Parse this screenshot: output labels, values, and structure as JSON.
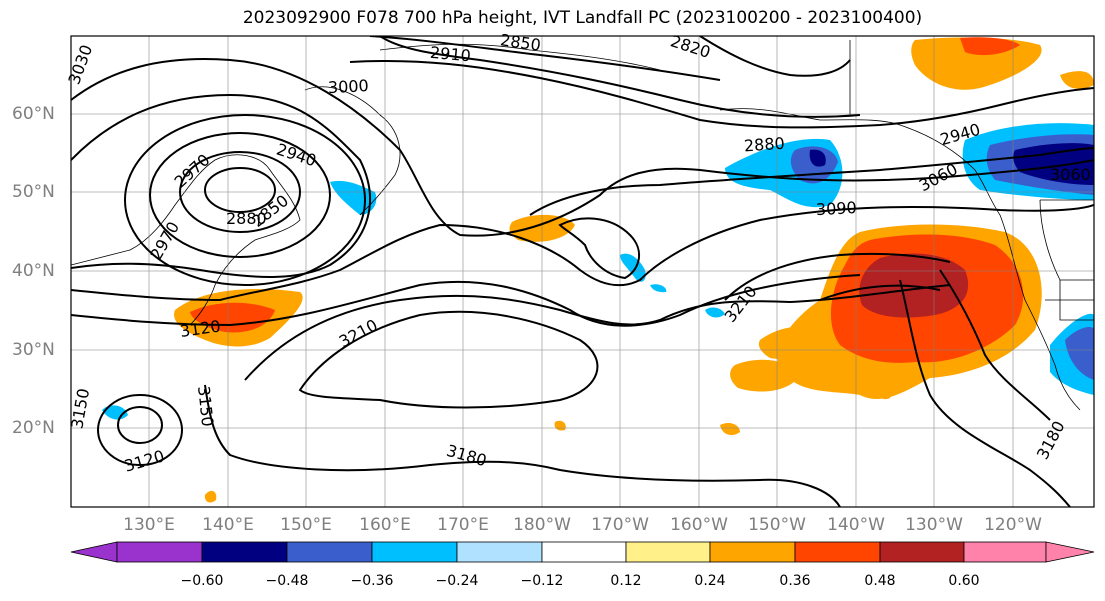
{
  "title": "2023092900 F078 700 hPa height, IVT Landfall PC (2023100200 - 2023100400)",
  "lat_labels": [
    "60°N",
    "50°N",
    "40°N",
    "30°N",
    "20°N"
  ],
  "lon_labels": [
    "130°E",
    "140°E",
    "150°E",
    "160°E",
    "170°E",
    "180°W",
    "170°W",
    "160°W",
    "150°W",
    "140°W",
    "130°W",
    "120°W"
  ],
  "contour_labels": [
    "2910",
    "2850",
    "2820",
    "3000",
    "2940",
    "2970",
    "2880",
    "2850",
    "2880",
    "2940",
    "3060",
    "3090",
    "2970",
    "3210",
    "3120",
    "3210",
    "3150",
    "3120",
    "3180",
    "3180",
    "3150",
    "3060",
    "3030"
  ],
  "colorbar": {
    "colors": [
      "#9a32cd",
      "#000080",
      "#3a5fcd",
      "#00bfff",
      "#b0e2ff",
      "#ffffff",
      "#fff08a",
      "#ffa500",
      "#ff4500",
      "#b22222",
      "#ff82ab"
    ],
    "tick_labels": [
      "−0.60",
      "−0.48",
      "−0.36",
      "−0.24",
      "−0.12",
      "0.12",
      "0.24",
      "0.36",
      "0.48",
      "0.60"
    ]
  }
}
